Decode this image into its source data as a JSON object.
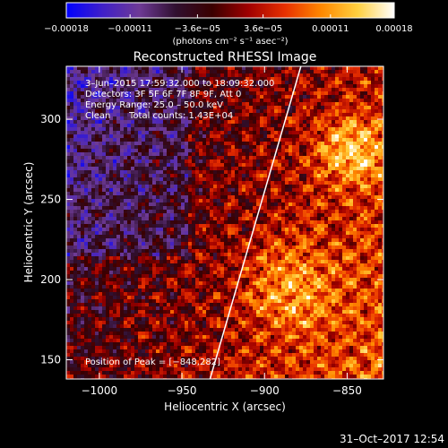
{
  "chart_data": {
    "type": "heatmap",
    "title": "Reconstructed RHESSI Image",
    "xlabel": "Heliocentric X (arcsec)",
    "ylabel": "Heliocentric Y (arcsec)",
    "xlim": [
      -1020,
      -828
    ],
    "ylim": [
      138,
      333
    ],
    "x_ticks": [
      -1000,
      -950,
      -900,
      -850
    ],
    "x_tick_labels": [
      "−1000",
      "−950",
      "−900",
      "−850"
    ],
    "y_ticks": [
      150,
      200,
      250,
      300
    ],
    "y_tick_labels": [
      "150",
      "200",
      "250",
      "300"
    ],
    "grid": false,
    "colorbar": {
      "label": "(photons cm⁻² s⁻¹ asec⁻²)",
      "range": [
        -0.00018,
        0.00018
      ],
      "ticks": [
        -0.00018,
        -0.00011,
        -3.6e-05,
        3.6e-05,
        0.00011,
        0.00018
      ],
      "tick_labels": [
        "−0.00018",
        "−0.00011",
        "−3.6e−05",
        "3.6e−05",
        "0.00011",
        "0.00018"
      ],
      "colors": [
        "#0000ff",
        "#4020c8",
        "#6e3a96",
        "#301030",
        "#3a0000",
        "#a00000",
        "#e83000",
        "#ff8800",
        "#ffd040",
        "#ffffff"
      ]
    },
    "annotations": {
      "time_range": "3–Jun–2015 17:59:32.000 to 18:09:32.000",
      "detectors": "Detectors: 3F 5F 6F 7F 8F 9F, Att 0",
      "energy_range": "Energy Range: 25.0 – 50.0 keV",
      "clean_label": "Clean",
      "total_counts": "Total counts: 1.43E+04",
      "peak_position": "Position of Peak = [−848,282]"
    },
    "peak": [
      -848,
      282
    ],
    "limb": [
      [
        -933,
        138
      ],
      [
        -878,
        333
      ]
    ]
  },
  "footer": {
    "timestamp": "31–Oct–2017 12:54"
  }
}
